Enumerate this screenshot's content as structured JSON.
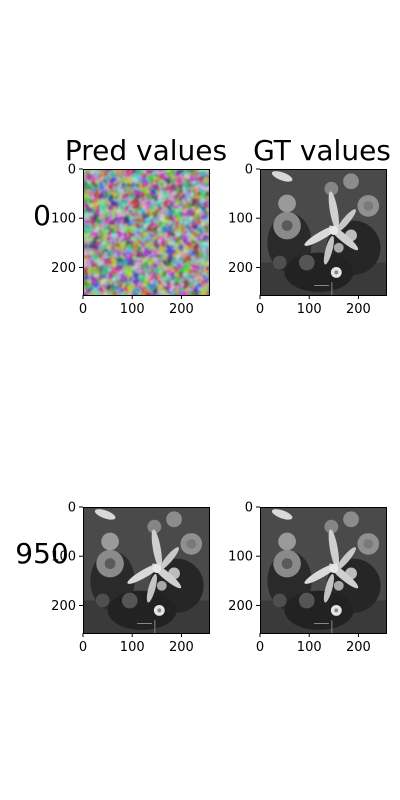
{
  "figure": {
    "column_titles": [
      "Pred values",
      "GT values"
    ],
    "row_labels": [
      "0",
      "950"
    ]
  },
  "chart_data": [
    {
      "type": "heatmap",
      "row": 0,
      "column": 0,
      "image": "blurry-noise-grayscale-image",
      "xlim": [
        0,
        256
      ],
      "ylim": [
        256,
        0
      ],
      "xticks": [
        0,
        100,
        200
      ],
      "yticks": [
        0,
        100,
        200
      ],
      "grid": false,
      "colormap": "gray"
    },
    {
      "type": "heatmap",
      "row": 0,
      "column": 1,
      "image": "flower-bouquet-grayscale-image",
      "xlim": [
        0,
        256
      ],
      "ylim": [
        256,
        0
      ],
      "xticks": [
        0,
        100,
        200
      ],
      "yticks": [
        0,
        100,
        200
      ],
      "grid": false,
      "colormap": "gray"
    },
    {
      "type": "heatmap",
      "row": 1,
      "column": 0,
      "image": "flower-bouquet-grayscale-image",
      "xlim": [
        0,
        256
      ],
      "ylim": [
        256,
        0
      ],
      "xticks": [
        0,
        100,
        200
      ],
      "yticks": [
        0,
        100,
        200
      ],
      "grid": false,
      "colormap": "gray"
    },
    {
      "type": "heatmap",
      "row": 1,
      "column": 1,
      "image": "flower-bouquet-grayscale-image",
      "xlim": [
        0,
        256
      ],
      "ylim": [
        256,
        0
      ],
      "xticks": [
        0,
        100,
        200
      ],
      "yticks": [
        0,
        100,
        200
      ],
      "grid": false,
      "colormap": "gray"
    }
  ]
}
